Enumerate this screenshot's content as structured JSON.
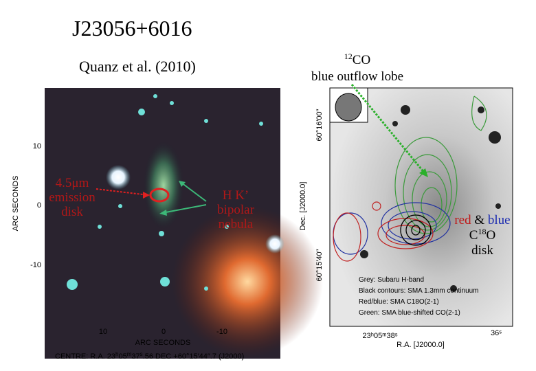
{
  "header": {
    "title": "J23056+6016",
    "subtitle": "Quanz et al. (2010)"
  },
  "left_panel": {
    "y_axis": {
      "label": "ARC SECONDS",
      "ticks": [
        "10",
        "0",
        "-10"
      ]
    },
    "x_axis": {
      "label": "ARC SECONDS",
      "ticks": [
        "10",
        "0",
        "-10"
      ]
    },
    "centre": {
      "prefix": "CENTRE: R.A. 23",
      "h": "h",
      "ra1": "05",
      "m": "m",
      "ra2": "37",
      "s": "s",
      "ra3": ".56  DEC +60°15′44″.7 (J2000)"
    },
    "annotations": {
      "disk": [
        "4.5μm",
        "emission",
        "disk"
      ],
      "nebula": [
        "H K’",
        "bipolar",
        "nebula"
      ]
    }
  },
  "right_panel": {
    "outflow_label": {
      "sup": "12",
      "main": "CO",
      "line2": "blue outflow lobe"
    },
    "disk_label": {
      "red": "red",
      "amp": "&",
      "blue": "blue",
      "c": "C",
      "sup": "18",
      "o": "O",
      "line3": "disk"
    },
    "y_axis": {
      "label": "Dec. [J2000.0]",
      "ticks": [
        "60°16′00″",
        "60°15′40″"
      ]
    },
    "x_axis": {
      "label": "R.A. [J2000.0]",
      "ticks": [
        "23ʰ05ᵐ38ˢ",
        "36ˢ"
      ]
    },
    "legend": [
      "Grey: Subaru H-band",
      "Black contours: SMA 1.3mm continuum",
      "Red/blue: SMA C18O(2-1)",
      "Green: SMA blue-shifted CO(2-1)"
    ]
  }
}
